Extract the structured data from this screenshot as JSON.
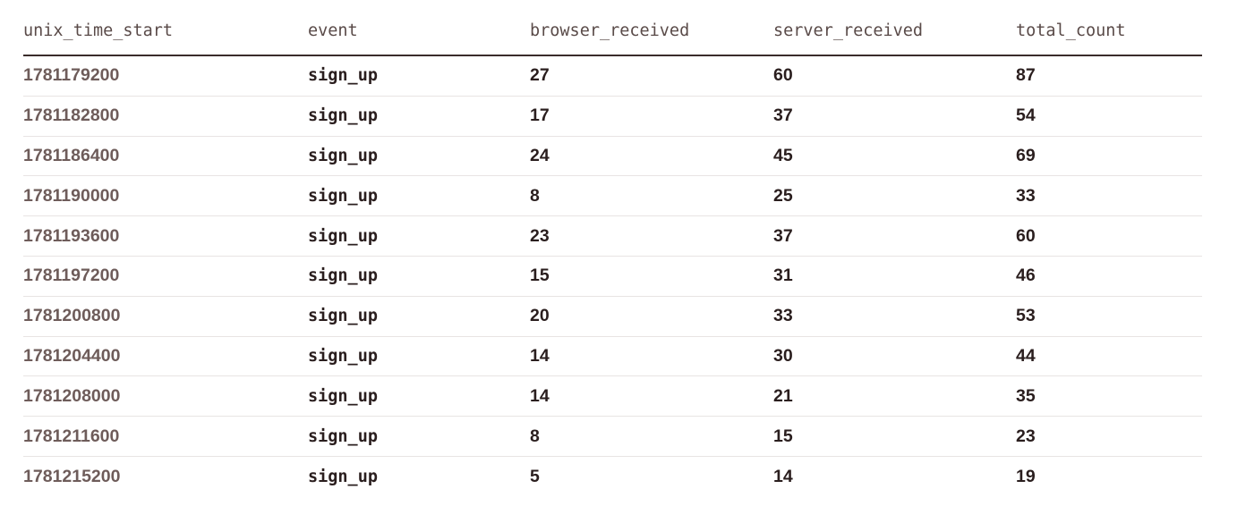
{
  "table": {
    "columns": [
      "unix_time_start",
      "event",
      "browser_received",
      "server_received",
      "total_count"
    ],
    "rows": [
      [
        1781179200,
        "sign_up",
        27,
        60,
        87
      ],
      [
        1781182800,
        "sign_up",
        17,
        37,
        54
      ],
      [
        1781186400,
        "sign_up",
        24,
        45,
        69
      ],
      [
        1781190000,
        "sign_up",
        8,
        25,
        33
      ],
      [
        1781193600,
        "sign_up",
        23,
        37,
        60
      ],
      [
        1781197200,
        "sign_up",
        15,
        31,
        46
      ],
      [
        1781200800,
        "sign_up",
        20,
        33,
        53
      ],
      [
        1781204400,
        "sign_up",
        14,
        30,
        44
      ],
      [
        1781208000,
        "sign_up",
        14,
        21,
        35
      ],
      [
        1781211600,
        "sign_up",
        8,
        15,
        23
      ],
      [
        1781215200,
        "sign_up",
        5,
        14,
        19
      ]
    ]
  }
}
